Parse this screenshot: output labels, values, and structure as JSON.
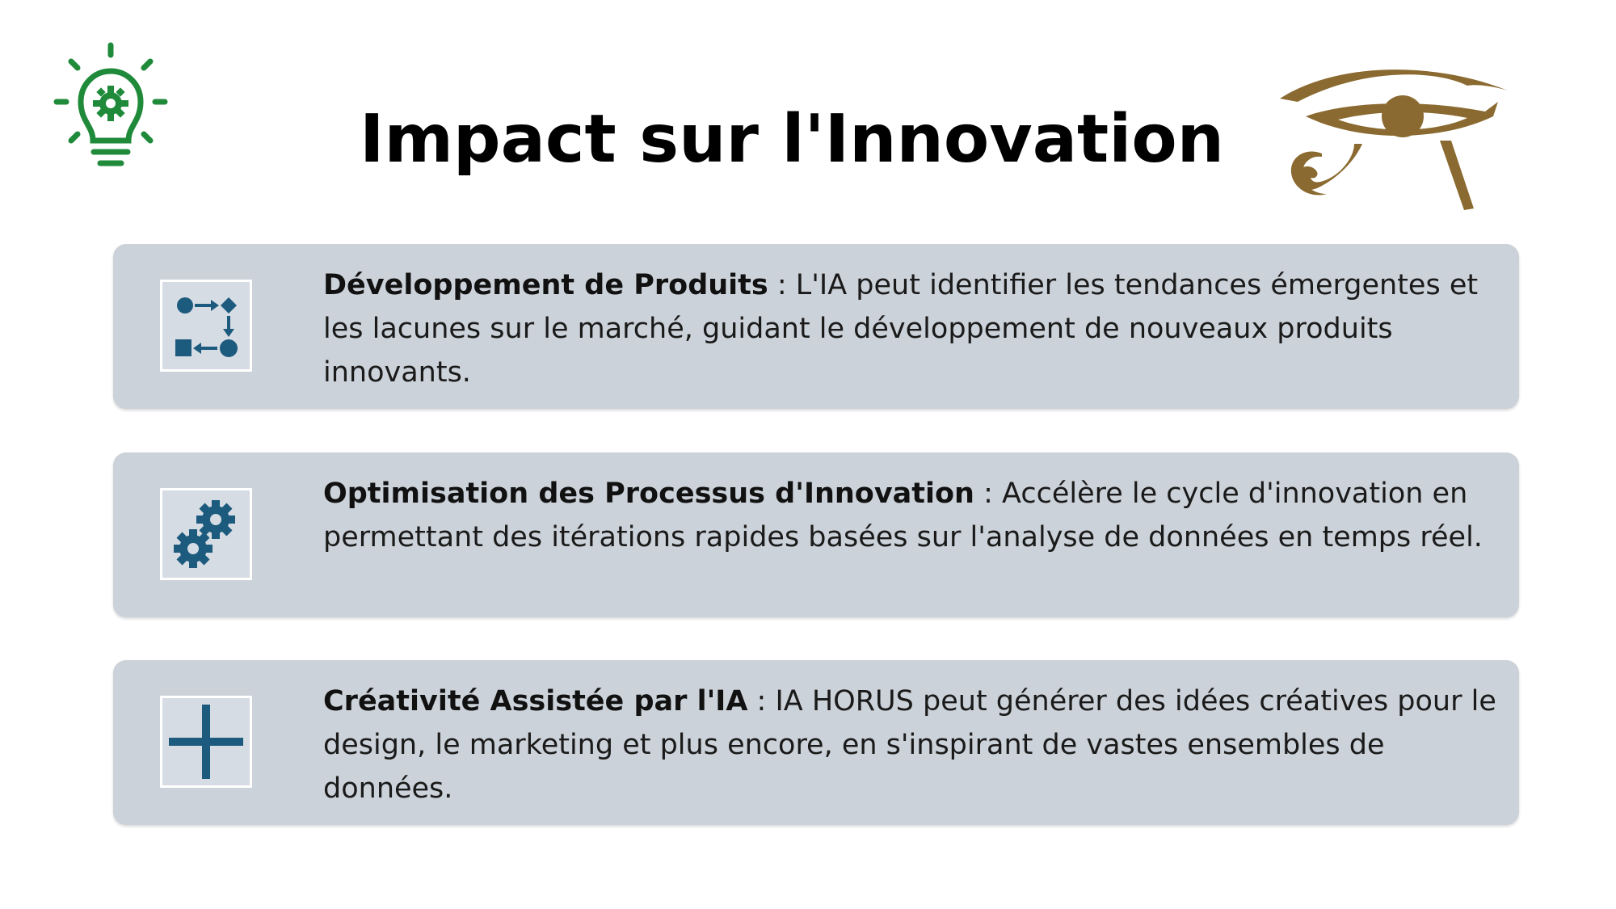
{
  "title": "Impact sur l'Innovation",
  "icons": {
    "top_left": "lightbulb-gear-icon",
    "top_right": "eye-of-horus-logo"
  },
  "colors": {
    "bulb_green": "#1f8a3a",
    "eye_gold": "#8a6a30",
    "card_bg": "#ccd2d9",
    "icon_blue": "#1c5a7e"
  },
  "items": [
    {
      "icon": "flowchart-icon",
      "heading": "Développement de Produits",
      "separator": " : ",
      "text": "L'IA peut identifier les tendances émergentes et les lacunes sur le marché, guidant le développement de nouveaux produits innovants."
    },
    {
      "icon": "gears-icon",
      "heading": "Optimisation des Processus d'Innovation",
      "separator": " : ",
      "text": "Accélère le cycle d'innovation en permettant des itérations rapides basées sur l'analyse de données en temps réel."
    },
    {
      "icon": "plus-icon",
      "heading": "Créativité Assistée par l'IA",
      "separator": " : ",
      "text": "IA HORUS peut générer des idées créatives pour le design, le marketing et plus encore, en s'inspirant de vastes ensembles de données."
    }
  ]
}
